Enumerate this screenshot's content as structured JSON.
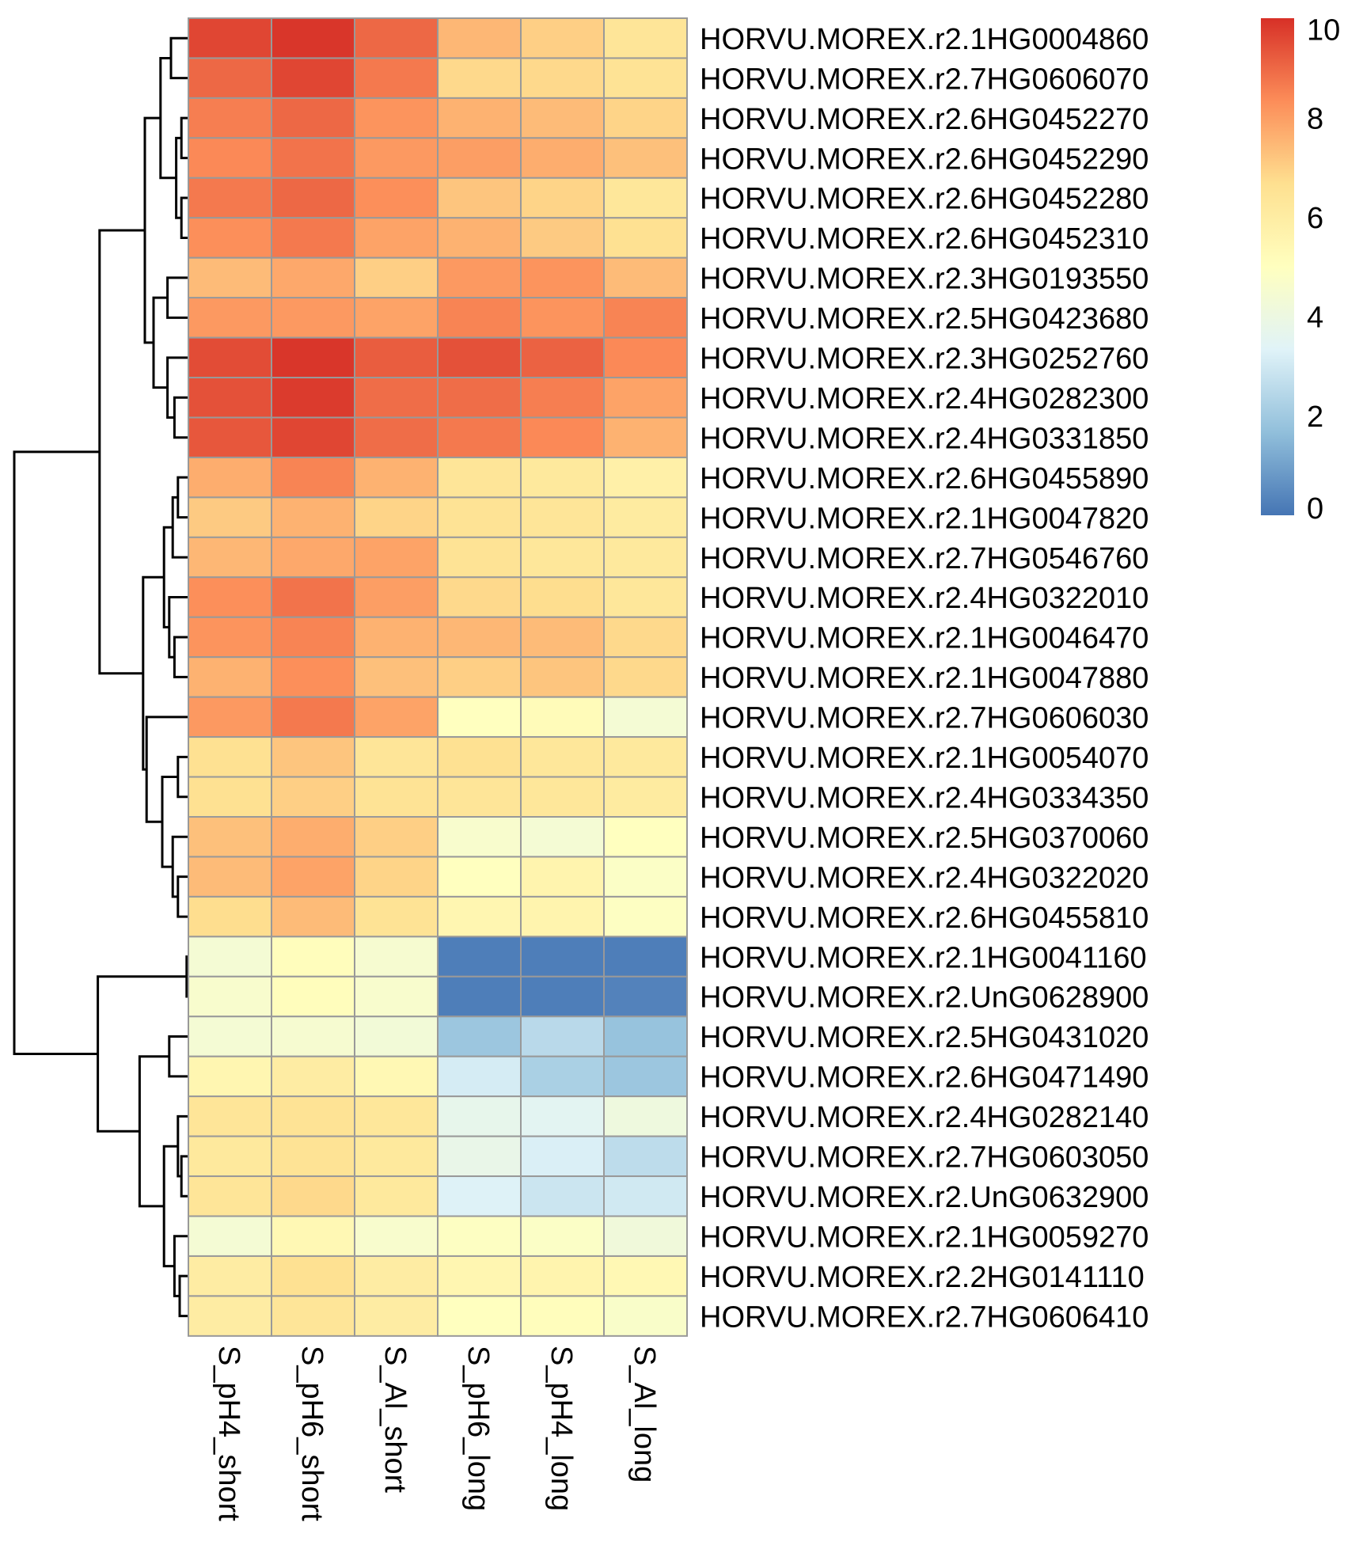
{
  "chart_data": {
    "type": "heatmap",
    "title": "",
    "columns": [
      "S_pH4_short",
      "S_pH6_short",
      "S_Al_short",
      "S_pH6_long",
      "S_pH4_long",
      "S_Al_long"
    ],
    "rows": [
      "HORVU.MOREX.r2.1HG0004860",
      "HORVU.MOREX.r2.7HG0606070",
      "HORVU.MOREX.r2.6HG0452270",
      "HORVU.MOREX.r2.6HG0452290",
      "HORVU.MOREX.r2.6HG0452280",
      "HORVU.MOREX.r2.6HG0452310",
      "HORVU.MOREX.r2.3HG0193550",
      "HORVU.MOREX.r2.5HG0423680",
      "HORVU.MOREX.r2.3HG0252760",
      "HORVU.MOREX.r2.4HG0282300",
      "HORVU.MOREX.r2.4HG0331850",
      "HORVU.MOREX.r2.6HG0455890",
      "HORVU.MOREX.r2.1HG0047820",
      "HORVU.MOREX.r2.7HG0546760",
      "HORVU.MOREX.r2.4HG0322010",
      "HORVU.MOREX.r2.1HG0046470",
      "HORVU.MOREX.r2.1HG0047880",
      "HORVU.MOREX.r2.7HG0606030",
      "HORVU.MOREX.r2.1HG0054070",
      "HORVU.MOREX.r2.4HG0334350",
      "HORVU.MOREX.r2.5HG0370060",
      "HORVU.MOREX.r2.4HG0322020",
      "HORVU.MOREX.r2.6HG0455810",
      "HORVU.MOREX.r2.1HG0041160",
      "HORVU.MOREX.r2.UnG0628900",
      "HORVU.MOREX.r2.5HG0431020",
      "HORVU.MOREX.r2.6HG0471490",
      "HORVU.MOREX.r2.4HG0282140",
      "HORVU.MOREX.r2.7HG0603050",
      "HORVU.MOREX.r2.UnG0632900",
      "HORVU.MOREX.r2.1HG0059270",
      "HORVU.MOREX.r2.2HG0141110",
      "HORVU.MOREX.r2.7HG0606410"
    ],
    "values": [
      [
        9.6,
        9.9,
        9.0,
        7.5,
        7.0,
        6.4
      ],
      [
        9.0,
        9.6,
        8.7,
        6.8,
        6.8,
        6.5
      ],
      [
        8.6,
        9.0,
        8.2,
        7.6,
        7.4,
        6.9
      ],
      [
        8.4,
        8.8,
        8.1,
        8.0,
        7.7,
        7.3
      ],
      [
        8.7,
        9.0,
        8.3,
        7.2,
        6.9,
        6.3
      ],
      [
        8.3,
        8.7,
        7.9,
        7.6,
        7.1,
        6.6
      ],
      [
        7.4,
        7.8,
        7.0,
        8.1,
        8.2,
        7.4
      ],
      [
        8.1,
        8.1,
        7.9,
        8.5,
        8.2,
        8.5
      ],
      [
        9.5,
        9.9,
        9.2,
        9.4,
        9.1,
        8.4
      ],
      [
        9.4,
        9.8,
        8.9,
        8.9,
        8.6,
        7.9
      ],
      [
        9.3,
        9.6,
        8.9,
        8.7,
        8.4,
        7.6
      ],
      [
        7.7,
        8.5,
        7.6,
        6.4,
        6.2,
        5.8
      ],
      [
        7.1,
        7.6,
        6.9,
        6.5,
        6.4,
        6.1
      ],
      [
        7.5,
        7.8,
        7.9,
        6.5,
        6.3,
        6.2
      ],
      [
        8.3,
        8.8,
        8.0,
        6.8,
        6.7,
        6.3
      ],
      [
        8.2,
        8.5,
        7.6,
        7.5,
        7.4,
        6.8
      ],
      [
        7.6,
        8.3,
        7.3,
        7.0,
        7.2,
        6.8
      ],
      [
        8.1,
        8.7,
        7.9,
        5.0,
        5.2,
        4.4
      ],
      [
        6.6,
        7.2,
        6.4,
        6.6,
        6.3,
        6.2
      ],
      [
        6.6,
        7.0,
        6.5,
        6.4,
        6.3,
        6.1
      ],
      [
        7.3,
        7.7,
        7.0,
        4.6,
        4.4,
        5.0
      ],
      [
        7.4,
        7.9,
        6.9,
        5.0,
        5.6,
        4.8
      ],
      [
        6.7,
        7.4,
        6.5,
        5.5,
        5.6,
        4.9
      ],
      [
        4.4,
        5.1,
        4.5,
        0.2,
        0.2,
        0.2
      ],
      [
        4.6,
        5.1,
        4.6,
        0.2,
        0.2,
        0.3
      ],
      [
        4.4,
        4.5,
        4.3,
        1.9,
        2.5,
        1.8
      ],
      [
        5.5,
        6.0,
        5.4,
        3.1,
        2.2,
        1.9
      ],
      [
        6.4,
        6.5,
        6.3,
        3.7,
        3.5,
        4.1
      ],
      [
        6.2,
        6.5,
        6.2,
        3.8,
        3.2,
        2.6
      ],
      [
        6.4,
        6.8,
        6.2,
        3.3,
        2.9,
        3.0
      ],
      [
        4.4,
        5.4,
        4.6,
        4.9,
        4.8,
        4.2
      ],
      [
        6.0,
        6.6,
        6.0,
        5.5,
        5.6,
        5.4
      ],
      [
        6.0,
        6.4,
        6.0,
        5.0,
        5.1,
        4.7
      ]
    ],
    "color_scale": {
      "min": 0,
      "max": 10,
      "stops": [
        "#4575B4",
        "#91BFDB",
        "#E0F3F8",
        "#FFFFBF",
        "#FEE090",
        "#FC8D59",
        "#D73027"
      ],
      "ticks": [
        "0",
        "2",
        "4",
        "6",
        "8",
        "10"
      ]
    },
    "dendrogram": {
      "leaf_order": "top-to-bottom",
      "merges": [
        [
          -1,
          -2,
          1
        ],
        [
          -3,
          -4,
          0.4
        ],
        [
          -5,
          -6,
          0.4
        ],
        [
          2,
          3,
          0.7
        ],
        [
          1,
          4,
          1.6
        ],
        [
          -7,
          -8,
          1.2
        ],
        [
          -10,
          -11,
          0.8
        ],
        [
          -9,
          7,
          1.2
        ],
        [
          6,
          8,
          2.0
        ],
        [
          5,
          9,
          2.5
        ],
        [
          -12,
          -13,
          0.6
        ],
        [
          11,
          -14,
          0.9
        ],
        [
          -16,
          -17,
          0.8
        ],
        [
          -15,
          13,
          1.1
        ],
        [
          12,
          14,
          1.4
        ],
        [
          -19,
          -20,
          0.6
        ],
        [
          -22,
          -23,
          0.6
        ],
        [
          -21,
          17,
          0.9
        ],
        [
          16,
          18,
          1.5
        ],
        [
          -18,
          19,
          2.4
        ],
        [
          15,
          20,
          2.6
        ],
        [
          10,
          21,
          5.1
        ],
        [
          -24,
          -25,
          0.1
        ],
        [
          -26,
          -27,
          1.1
        ],
        [
          -29,
          -30,
          0.4
        ],
        [
          -28,
          25,
          0.6
        ],
        [
          -32,
          -33,
          0.5
        ],
        [
          -31,
          27,
          0.8
        ],
        [
          26,
          28,
          1.4
        ],
        [
          24,
          29,
          2.8
        ],
        [
          23,
          30,
          5.2
        ],
        [
          22,
          31,
          10
        ]
      ]
    }
  }
}
